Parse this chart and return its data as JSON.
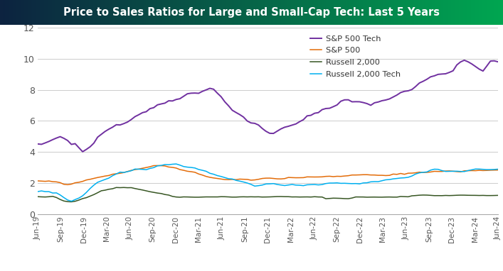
{
  "title": "Price to Sales Ratios for Large and Small-Cap Tech: Last 5 Years",
  "title_bg_left": "#0d2340",
  "title_bg_right": "#00a651",
  "title_color": "#ffffff",
  "title_fontsize": 10.5,
  "ylim": [
    0,
    12
  ],
  "yticks": [
    0,
    2,
    4,
    6,
    8,
    10,
    12
  ],
  "background_color": "#ffffff",
  "grid_color": "#cccccc",
  "series": {
    "sp500_tech": {
      "label": "S&P 500 Tech",
      "color": "#7030a0",
      "linewidth": 1.4
    },
    "sp500": {
      "label": "S&P 500",
      "color": "#e36c09",
      "linewidth": 1.1
    },
    "russell2000": {
      "label": "Russell 2,000",
      "color": "#375623",
      "linewidth": 1.1
    },
    "russell2000_tech": {
      "label": "Russell 2,000 Tech",
      "color": "#00b0f0",
      "linewidth": 1.1
    }
  },
  "xtick_labels": [
    "Jun-19",
    "Sep-19",
    "Dec-19",
    "Mar-20",
    "Jun-20",
    "Sep-20",
    "Dec-20",
    "Mar-21",
    "Jun-21",
    "Sep-21",
    "Dec-21",
    "Mar-22",
    "Jun-22",
    "Sep-22",
    "Dec-22",
    "Mar-23",
    "Jun-23",
    "Sep-23",
    "Dec-23",
    "Mar-24",
    "Jun-24"
  ],
  "sp500_tech_base": [
    4.5,
    4.45,
    4.5,
    4.6,
    4.75,
    4.85,
    4.9,
    4.8,
    4.7,
    4.5,
    4.55,
    4.3,
    4.1,
    4.3,
    4.5,
    4.7,
    5.0,
    5.2,
    5.4,
    5.5,
    5.6,
    5.7,
    5.8,
    5.9,
    6.0,
    6.15,
    6.3,
    6.45,
    6.55,
    6.65,
    6.75,
    6.8,
    7.0,
    7.1,
    7.2,
    7.3,
    7.4,
    7.5,
    7.55,
    7.6,
    7.7,
    7.75,
    7.8,
    7.85,
    8.0,
    8.1,
    8.1,
    8.0,
    7.8,
    7.6,
    7.3,
    7.0,
    6.7,
    6.5,
    6.3,
    6.2,
    6.0,
    5.9,
    5.8,
    5.7,
    5.5,
    5.4,
    5.3,
    5.25,
    5.3,
    5.4,
    5.5,
    5.6,
    5.7,
    5.8,
    5.9,
    6.0,
    6.2,
    6.4,
    6.5,
    6.6,
    6.7,
    6.8,
    6.9,
    7.0,
    7.1,
    7.2,
    7.3,
    7.35,
    7.3,
    7.25,
    7.2,
    7.15,
    7.1,
    7.0,
    7.1,
    7.2,
    7.3,
    7.4,
    7.5,
    7.6,
    7.7,
    7.8,
    7.9,
    8.0,
    8.1,
    8.3,
    8.5,
    8.6,
    8.7,
    8.75,
    8.8,
    8.9,
    9.0,
    9.1,
    9.2,
    9.3,
    9.5,
    9.7,
    9.8,
    9.8,
    9.7,
    9.5,
    9.3,
    9.1,
    9.5,
    9.8,
    9.9,
    9.8
  ],
  "sp500_base": [
    2.1,
    2.1,
    2.1,
    2.15,
    2.1,
    2.1,
    2.05,
    1.95,
    1.9,
    1.95,
    2.0,
    2.05,
    2.1,
    2.2,
    2.25,
    2.3,
    2.35,
    2.4,
    2.45,
    2.5,
    2.55,
    2.6,
    2.65,
    2.7,
    2.75,
    2.8,
    2.85,
    2.9,
    2.95,
    3.0,
    3.05,
    3.1,
    3.1,
    3.1,
    3.1,
    3.05,
    3.0,
    2.95,
    2.85,
    2.8,
    2.75,
    2.7,
    2.65,
    2.55,
    2.5,
    2.45,
    2.4,
    2.35,
    2.3,
    2.25,
    2.2,
    2.2,
    2.2,
    2.2,
    2.2,
    2.2,
    2.2,
    2.2,
    2.22,
    2.25,
    2.28,
    2.3,
    2.3,
    2.3,
    2.3,
    2.3,
    2.3,
    2.35,
    2.35,
    2.35,
    2.35,
    2.35,
    2.4,
    2.4,
    2.4,
    2.4,
    2.4,
    2.4,
    2.4,
    2.4,
    2.45,
    2.45,
    2.45,
    2.45,
    2.45,
    2.45,
    2.45,
    2.5,
    2.5,
    2.5,
    2.5,
    2.5,
    2.5,
    2.5,
    2.5,
    2.55,
    2.55,
    2.6,
    2.6,
    2.65,
    2.65,
    2.65,
    2.7,
    2.7,
    2.7,
    2.72,
    2.75,
    2.75,
    2.75,
    2.75,
    2.75,
    2.75,
    2.75,
    2.75,
    2.78,
    2.8,
    2.8,
    2.8,
    2.8,
    2.8,
    2.82,
    2.85,
    2.85,
    2.85
  ],
  "russell2000_base": [
    1.1,
    1.1,
    1.1,
    1.1,
    1.1,
    1.05,
    0.95,
    0.85,
    0.8,
    0.78,
    0.82,
    0.9,
    1.0,
    1.1,
    1.2,
    1.3,
    1.4,
    1.5,
    1.55,
    1.6,
    1.65,
    1.7,
    1.7,
    1.7,
    1.7,
    1.7,
    1.65,
    1.6,
    1.55,
    1.5,
    1.45,
    1.4,
    1.35,
    1.3,
    1.25,
    1.2,
    1.15,
    1.1,
    1.1,
    1.1,
    1.1,
    1.1,
    1.1,
    1.1,
    1.1,
    1.1,
    1.1,
    1.1,
    1.1,
    1.1,
    1.1,
    1.1,
    1.1,
    1.1,
    1.1,
    1.1,
    1.1,
    1.1,
    1.1,
    1.1,
    1.1,
    1.1,
    1.1,
    1.1,
    1.1,
    1.1,
    1.1,
    1.1,
    1.1,
    1.1,
    1.1,
    1.1,
    1.1,
    1.1,
    1.1,
    1.1,
    1.1,
    1.0,
    1.0,
    1.0,
    1.0,
    1.0,
    1.0,
    1.0,
    1.05,
    1.1,
    1.1,
    1.1,
    1.1,
    1.1,
    1.1,
    1.1,
    1.1,
    1.1,
    1.1,
    1.1,
    1.1,
    1.15,
    1.15,
    1.15,
    1.2,
    1.2,
    1.2,
    1.2,
    1.2,
    1.2,
    1.2,
    1.2,
    1.2,
    1.2,
    1.2,
    1.2,
    1.2,
    1.2,
    1.2,
    1.2,
    1.2,
    1.2,
    1.2,
    1.2,
    1.2,
    1.2,
    1.2,
    1.2
  ],
  "russell2000_tech_base": [
    1.4,
    1.4,
    1.4,
    1.4,
    1.35,
    1.3,
    1.2,
    1.05,
    0.95,
    0.9,
    1.0,
    1.1,
    1.2,
    1.4,
    1.6,
    1.8,
    2.0,
    2.15,
    2.25,
    2.35,
    2.45,
    2.55,
    2.65,
    2.7,
    2.75,
    2.8,
    2.85,
    2.9,
    2.9,
    2.9,
    2.95,
    3.0,
    3.1,
    3.15,
    3.2,
    3.2,
    3.2,
    3.2,
    3.15,
    3.1,
    3.05,
    3.0,
    2.95,
    2.85,
    2.8,
    2.7,
    2.6,
    2.5,
    2.4,
    2.35,
    2.3,
    2.25,
    2.2,
    2.15,
    2.1,
    2.05,
    2.0,
    1.95,
    1.9,
    1.9,
    1.9,
    1.9,
    1.9,
    1.9,
    1.9,
    1.9,
    1.9,
    1.9,
    1.9,
    1.9,
    1.9,
    1.9,
    1.9,
    1.9,
    1.9,
    1.9,
    1.95,
    2.0,
    2.0,
    2.0,
    2.0,
    2.0,
    2.0,
    2.0,
    2.0,
    2.0,
    2.0,
    2.0,
    2.0,
    2.05,
    2.1,
    2.1,
    2.15,
    2.2,
    2.2,
    2.25,
    2.3,
    2.35,
    2.4,
    2.45,
    2.5,
    2.55,
    2.6,
    2.65,
    2.7,
    2.75,
    2.8,
    2.8,
    2.8,
    2.8,
    2.8,
    2.8,
    2.8,
    2.8,
    2.8,
    2.8,
    2.82,
    2.85,
    2.85,
    2.85,
    2.85,
    2.85,
    2.85,
    2.85
  ],
  "noise_seed": 42,
  "noise_scale_sp500tech": 0.12,
  "noise_scale_sp500": 0.04,
  "noise_scale_russell": 0.03,
  "noise_scale_russelltech": 0.06
}
